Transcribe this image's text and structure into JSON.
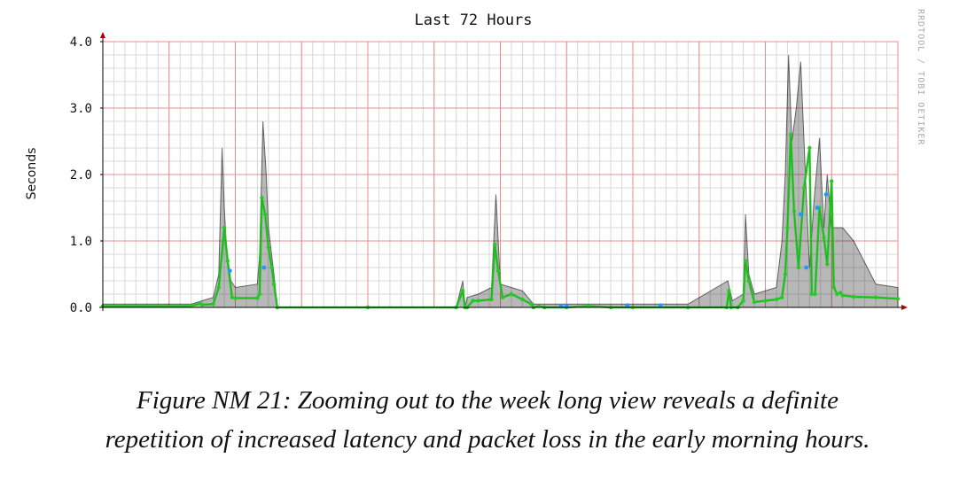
{
  "chart_data": {
    "type": "line",
    "title": "Last 72 Hours",
    "ylabel": "Seconds",
    "xlabel": "",
    "ylim": [
      0,
      4.0
    ],
    "yticks": [
      "0.0",
      "1.0",
      "2.0",
      "3.0",
      "4.0"
    ],
    "y_tick_values": [
      0,
      1,
      2,
      3,
      4
    ],
    "xlim": [
      0,
      72
    ],
    "grid": true,
    "watermark": "RRDTOOL / TOBI OETIKER",
    "colors": {
      "major_grid": "#e88c8c",
      "minor_grid": "#d8d8d8",
      "median": "#22cc22",
      "loss": "#2299ff",
      "smoke": "#000000",
      "axis_arrow": "#aa0000"
    },
    "series": [
      {
        "role": "median",
        "x": [
          0,
          8,
          8.8,
          9,
          10,
          10.5,
          11,
          11.3,
          11.7,
          12,
          14,
          14.2,
          14.4,
          14.7,
          15,
          15.3,
          15.5,
          15.8,
          24,
          32,
          32.6,
          32.8,
          33,
          33.5,
          34,
          35.2,
          35.5,
          35.8,
          36.2,
          37,
          38,
          38.8,
          39,
          39.5,
          40,
          42,
          44,
          46,
          48,
          53,
          56.5,
          56.7,
          56.9,
          57.5,
          58,
          58.2,
          58.5,
          59,
          60,
          61,
          61.5,
          61.8,
          62,
          62.3,
          62.6,
          63,
          63.5,
          64,
          64.2,
          64.5,
          64.9,
          65.3,
          65.6,
          66,
          66.2,
          66.5,
          66.8,
          67,
          68,
          70,
          72
        ],
        "y": [
          0.02,
          0.02,
          0.06,
          0.04,
          0.05,
          0.3,
          1.2,
          0.7,
          0.15,
          0.14,
          0.14,
          0.2,
          1.65,
          1.4,
          0.9,
          0.6,
          0.35,
          0.0,
          0.0,
          0.0,
          0.25,
          0.0,
          0.0,
          0.1,
          0.1,
          0.12,
          0.95,
          0.55,
          0.15,
          0.2,
          0.12,
          0.05,
          0.0,
          0.02,
          0.0,
          0.0,
          0.02,
          0.0,
          0.0,
          0.0,
          0.0,
          0.25,
          0.0,
          0.0,
          0.1,
          0.7,
          0.4,
          0.08,
          0.1,
          0.12,
          0.15,
          0.5,
          1.2,
          2.6,
          1.45,
          0.6,
          1.8,
          2.4,
          0.2,
          0.2,
          1.5,
          1.05,
          0.65,
          1.9,
          0.3,
          0.2,
          0.22,
          0.18,
          0.16,
          0.15,
          0.13
        ]
      },
      {
        "role": "smoke",
        "x": [
          0,
          8,
          9,
          10,
          10.5,
          10.8,
          11,
          11.2,
          11.6,
          12,
          14,
          14.2,
          14.5,
          14.8,
          15,
          15.5,
          15.8,
          24,
          32,
          32.6,
          32.8,
          33,
          34,
          35.2,
          35.6,
          36,
          37,
          38,
          39,
          40,
          44,
          48,
          53,
          56.6,
          57,
          58,
          58.2,
          58.5,
          59,
          61,
          61.5,
          61.8,
          62.1,
          62.4,
          62.8,
          63.2,
          63.6,
          64,
          64.4,
          64.9,
          65.3,
          65.6,
          66,
          67,
          68,
          70,
          72
        ],
        "y": [
          0.05,
          0.05,
          0.1,
          0.15,
          0.5,
          2.4,
          1.5,
          0.9,
          0.4,
          0.3,
          0.35,
          0.8,
          2.8,
          2.0,
          1.2,
          0.5,
          0.0,
          0.0,
          0.0,
          0.4,
          0.0,
          0.15,
          0.2,
          0.3,
          1.7,
          0.35,
          0.3,
          0.25,
          0.05,
          0.05,
          0.05,
          0.05,
          0.05,
          0.4,
          0.1,
          0.2,
          1.4,
          0.5,
          0.2,
          0.3,
          1.0,
          2.0,
          3.8,
          2.5,
          3.0,
          3.7,
          2.1,
          0.6,
          1.6,
          2.55,
          1.2,
          2.0,
          1.2,
          1.2,
          1.0,
          0.35,
          0.3
        ]
      },
      {
        "role": "loss",
        "x": [
          11.5,
          14.6,
          41.5,
          42,
          47.5,
          50.5,
          63.2,
          63.7,
          64.7,
          65.5
        ],
        "y": [
          0.55,
          0.6,
          0.02,
          0.02,
          0.03,
          0.03,
          1.4,
          0.6,
          1.5,
          1.7
        ]
      }
    ]
  },
  "caption": {
    "line1": "Figure NM 21: Zooming out to the week long view reveals a definite",
    "line2": "repetition of increased latency and packet loss in the early morning hours."
  }
}
